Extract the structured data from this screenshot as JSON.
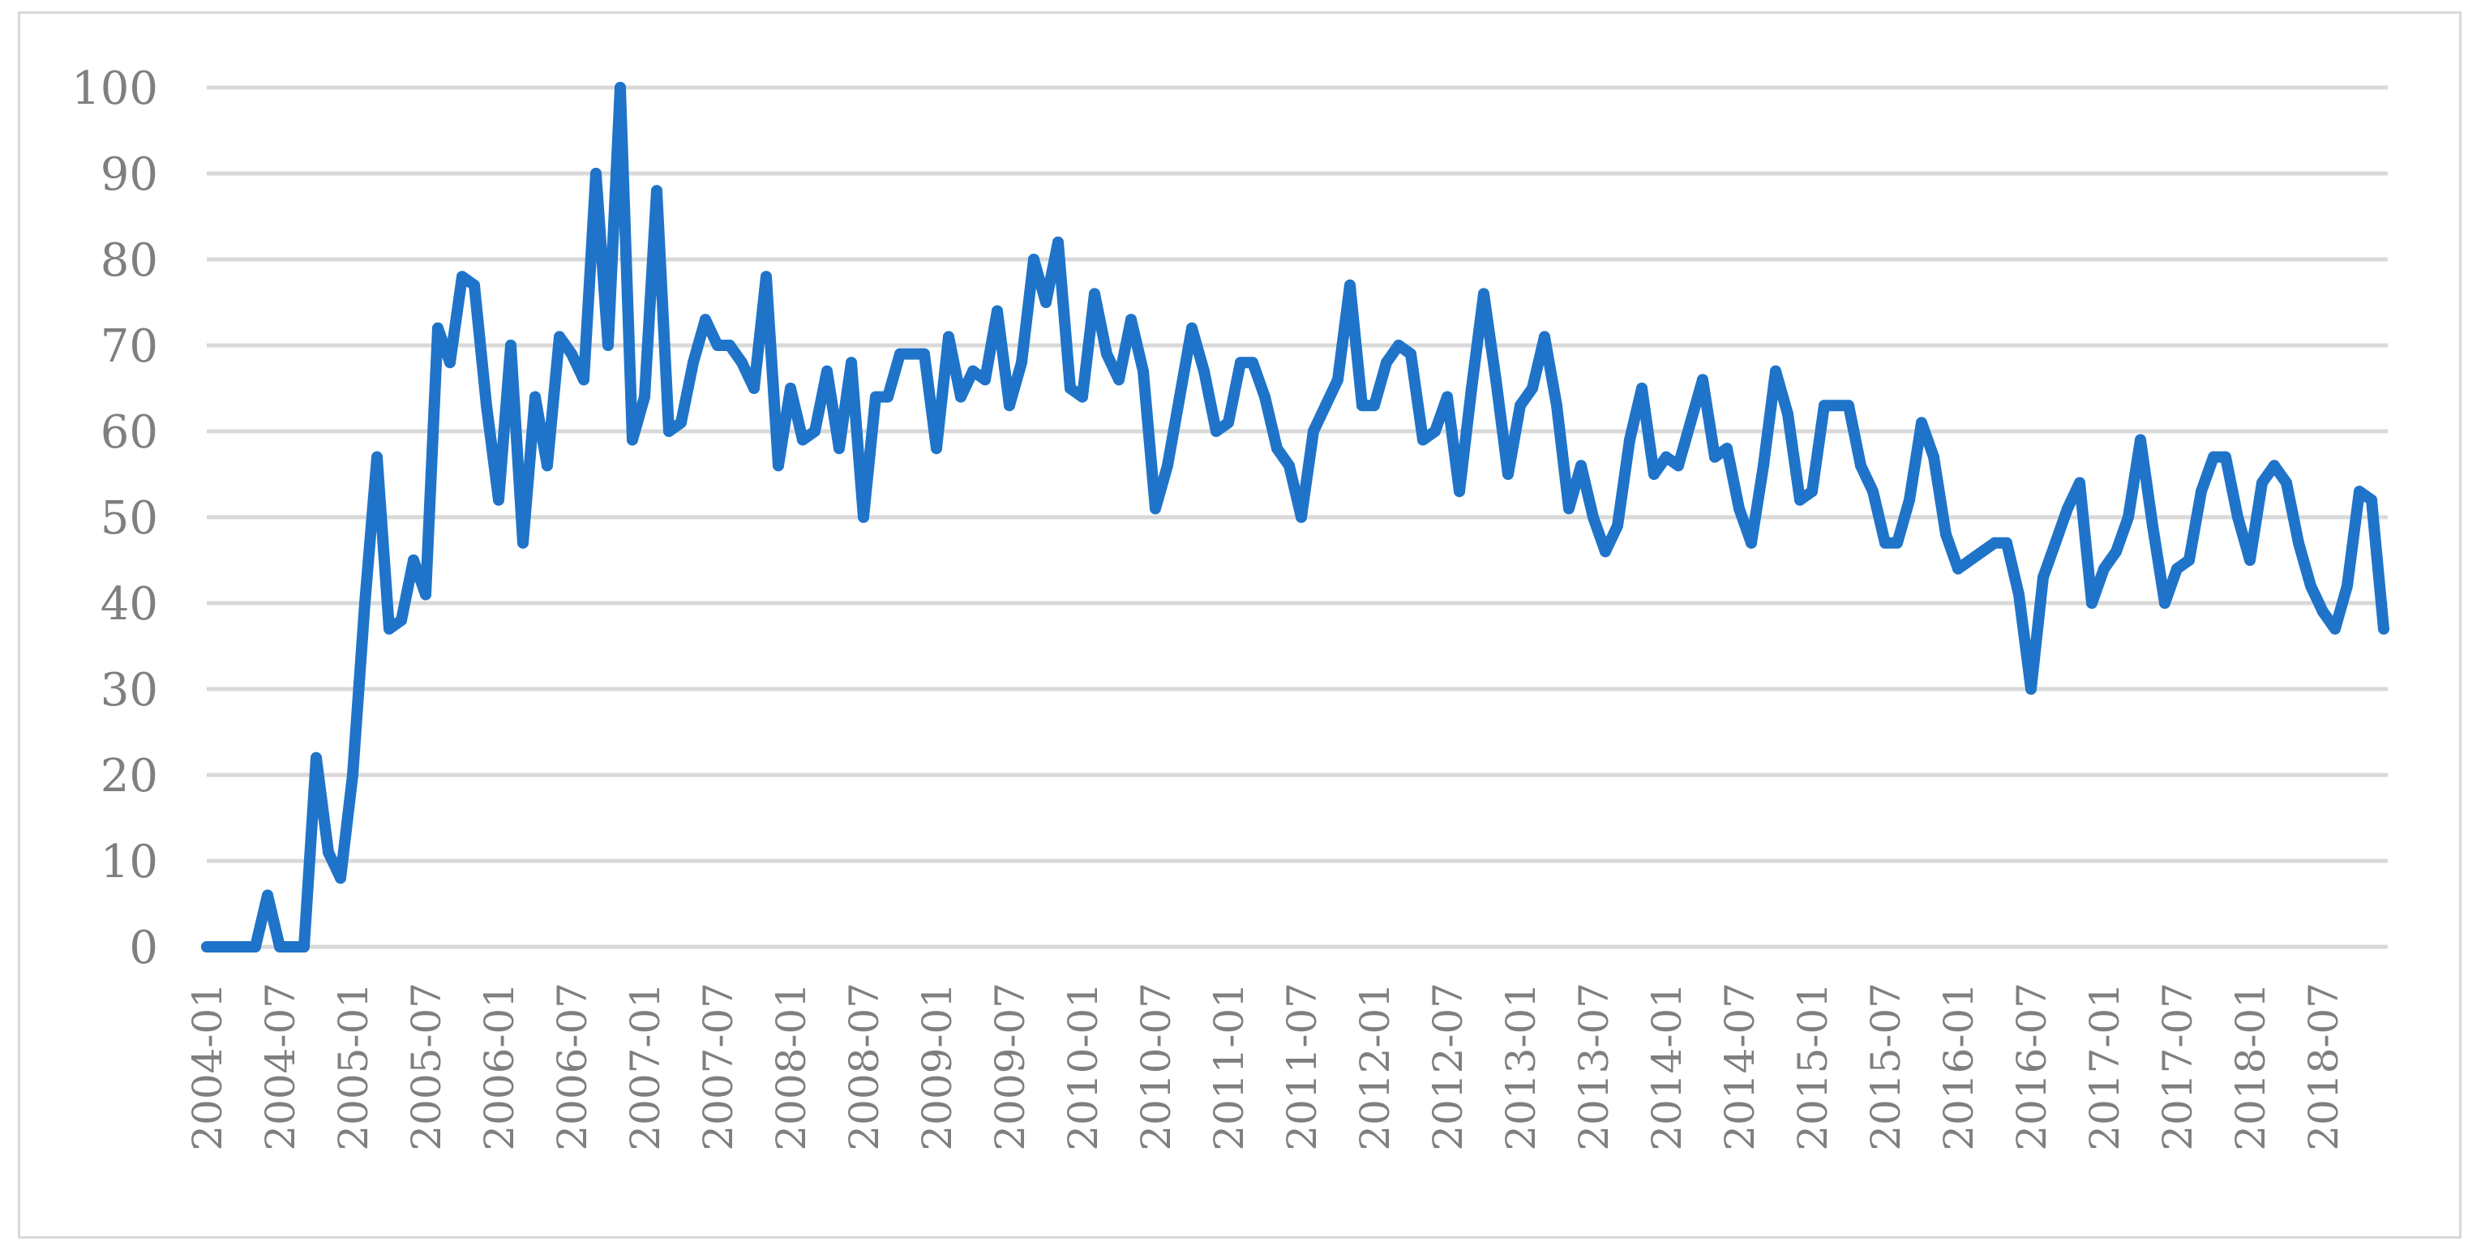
{
  "chart_data": {
    "type": "line",
    "title": "",
    "xlabel": "",
    "ylabel": "",
    "ylim": [
      0,
      100
    ],
    "yticks": [
      "0",
      "10",
      "20",
      "30",
      "40",
      "50",
      "60",
      "70",
      "80",
      "90",
      "100"
    ],
    "grid": true,
    "legend": "none",
    "line_color": "#1f74c9",
    "gridline_color": "#d9d9d9",
    "tick_label_color": "#7f7f7f",
    "x_start": "2004-01",
    "x_end": "2018-12",
    "x_tick_labels": [
      "2004-01",
      "2004-07",
      "2005-01",
      "2005-07",
      "2006-01",
      "2006-07",
      "2007-01",
      "2007-07",
      "2008-01",
      "2008-07",
      "2009-01",
      "2009-07",
      "2010-01",
      "2010-07",
      "2011-01",
      "2011-07",
      "2012-01",
      "2012-07",
      "2013-01",
      "2013-07",
      "2014-01",
      "2014-07",
      "2015-01",
      "2015-07",
      "2016-01",
      "2016-07",
      "2017-01",
      "2017-07",
      "2018-01",
      "2018-07"
    ],
    "series": [
      {
        "values": [
          0,
          0,
          0,
          0,
          0,
          6,
          0,
          0,
          0,
          22,
          11,
          8,
          20,
          40,
          57,
          37,
          38,
          45,
          41,
          72,
          68,
          78,
          77,
          63,
          52,
          70,
          47,
          64,
          56,
          71,
          69,
          66,
          90,
          70,
          100,
          59,
          64,
          88,
          60,
          61,
          68,
          73,
          70,
          70,
          68,
          65,
          78,
          56,
          65,
          59,
          60,
          67,
          58,
          68,
          50,
          64,
          64,
          69,
          69,
          69,
          58,
          71,
          64,
          67,
          66,
          74,
          63,
          68,
          80,
          75,
          82,
          65,
          64,
          76,
          69,
          66,
          73,
          67,
          51,
          56,
          64,
          72,
          67,
          60,
          61,
          68,
          68,
          64,
          58,
          56,
          50,
          60,
          63,
          66,
          77,
          63,
          63,
          68,
          70,
          69,
          59,
          60,
          64,
          53,
          65,
          76,
          66,
          55,
          63,
          65,
          71,
          63,
          51,
          56,
          50,
          46,
          49,
          59,
          65,
          55,
          57,
          56,
          61,
          66,
          57,
          58,
          51,
          47,
          56,
          67,
          62,
          52,
          53,
          63,
          63,
          63,
          56,
          53,
          47,
          47,
          52,
          61,
          57,
          48,
          44,
          45,
          46,
          47,
          47,
          41,
          30,
          43,
          47,
          51,
          54,
          40,
          44,
          46,
          50,
          59,
          49,
          40,
          44,
          45,
          53,
          57,
          57,
          50,
          45,
          54,
          56,
          54,
          47,
          42,
          39,
          37,
          42,
          53,
          52,
          37
        ]
      }
    ]
  }
}
